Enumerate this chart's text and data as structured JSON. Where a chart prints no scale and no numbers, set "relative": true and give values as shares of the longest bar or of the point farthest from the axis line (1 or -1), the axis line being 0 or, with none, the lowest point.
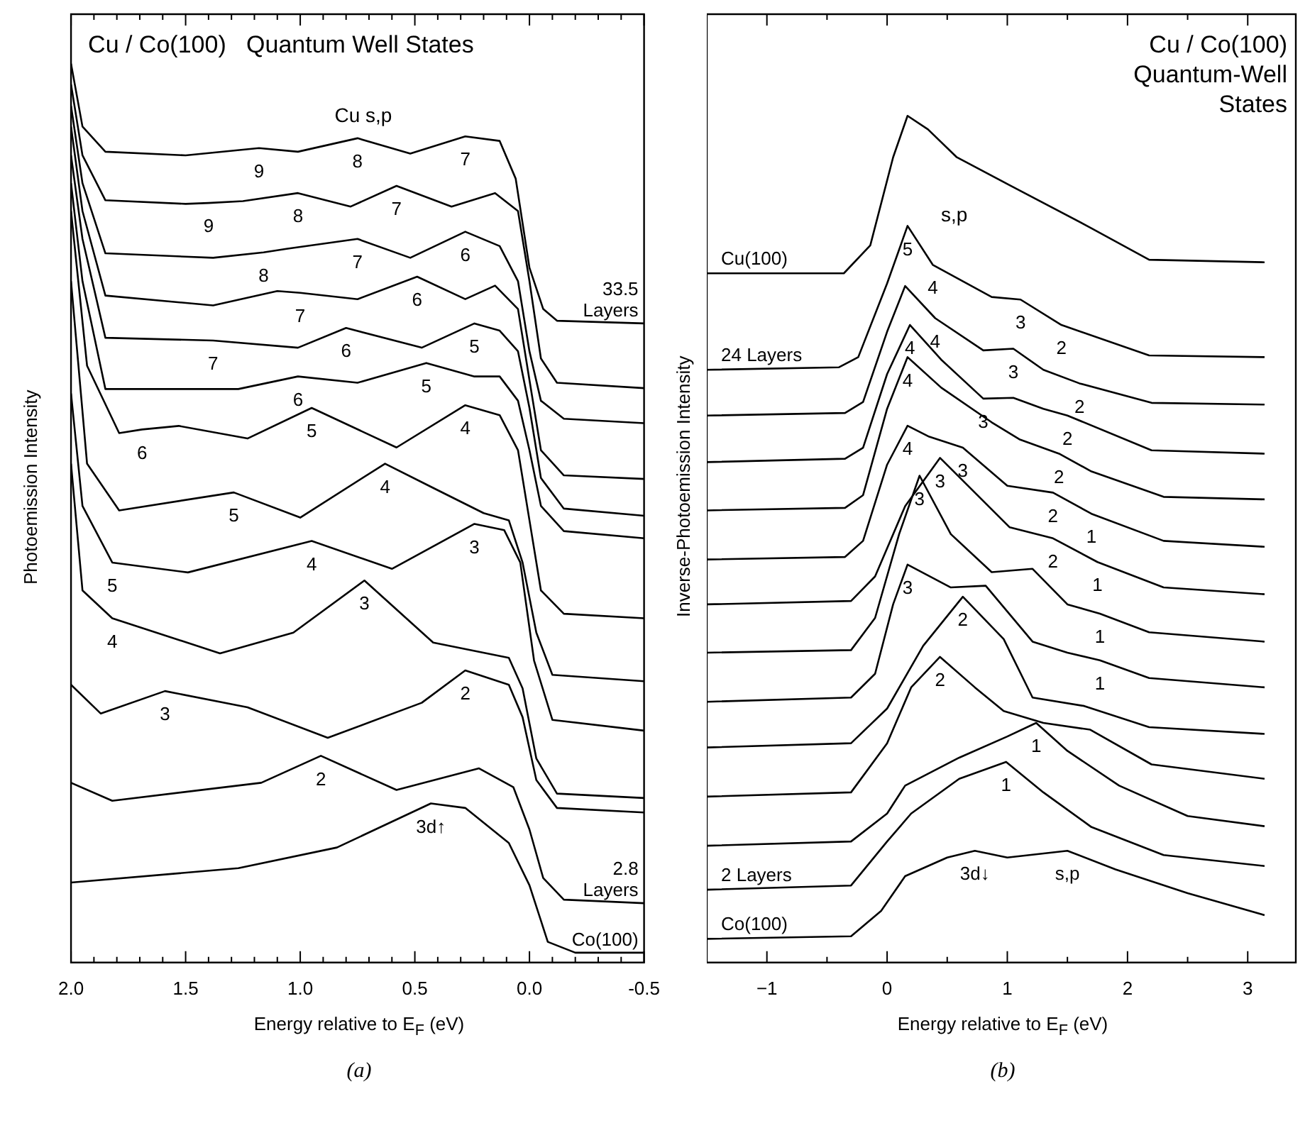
{
  "chart_data": [
    {
      "type": "line",
      "title": "Cu / Co(100)   Quantum Well States",
      "subtitle": "Cu s,p",
      "xlabel": "Energy relative to E$_{F}$ (eV)",
      "ylabel": "Photoemission Intensity",
      "relative": true,
      "tick_labels": "x",
      "xlim": [
        2.0,
        -0.5
      ],
      "xticks": [
        {
          "value": 2,
          "label": "2.0"
        },
        {
          "value": 1.9,
          "label": null
        },
        {
          "value": 1.8,
          "label": null
        },
        {
          "value": 1.7,
          "label": null
        },
        {
          "value": 1.6,
          "label": null
        },
        {
          "value": 1.5,
          "label": "1.5"
        },
        {
          "value": 1.4,
          "label": null
        },
        {
          "value": 1.3,
          "label": null
        },
        {
          "value": 1.2,
          "label": null
        },
        {
          "value": 1.1,
          "label": null
        },
        {
          "value": 1,
          "label": "1.0"
        },
        {
          "value": 0.9,
          "label": null
        },
        {
          "value": 0.8,
          "label": null
        },
        {
          "value": 0.7,
          "label": null
        },
        {
          "value": 0.6,
          "label": null
        },
        {
          "value": 0.5,
          "label": "0.5"
        },
        {
          "value": 0.4,
          "label": null
        },
        {
          "value": 0.3,
          "label": null
        },
        {
          "value": 0.2,
          "label": null
        },
        {
          "value": 0.1,
          "label": null
        },
        {
          "value": 0,
          "label": "0.0"
        },
        {
          "value": -0.1,
          "label": null
        },
        {
          "value": -0.2,
          "label": null
        },
        {
          "value": -0.3,
          "label": null
        },
        {
          "value": -0.4,
          "label": null
        },
        {
          "value": -0.5,
          "label": "-0.5"
        }
      ],
      "series": [
        {
          "color": "#000000",
          "x": [
            2.0,
            1.95,
            1.85,
            1.5,
            1.18,
            1.01,
            0.75,
            0.52,
            0.28,
            0.13,
            0.06,
            0,
            -0.06,
            -0.12,
            -0.5
          ],
          "values": [
            1.0,
            0.93,
            0.902,
            0.898,
            0.906,
            0.902,
            0.917,
            0.9,
            0.919,
            0.914,
            0.872,
            0.773,
            0.727,
            0.714,
            0.711
          ]
        },
        {
          "color": "#000000",
          "x": [
            2.0,
            1.95,
            1.85,
            1.5,
            1.4,
            1.25,
            1.01,
            0.78,
            0.58,
            0.34,
            0.15,
            0.05,
            0,
            -0.05,
            -0.12,
            -0.5
          ],
          "values": [
            0.977,
            0.898,
            0.848,
            0.844,
            0.845,
            0.847,
            0.856,
            0.841,
            0.864,
            0.841,
            0.856,
            0.836,
            0.758,
            0.672,
            0.645,
            0.639
          ]
        },
        {
          "color": "#000000",
          "x": [
            2.0,
            1.95,
            1.85,
            1.38,
            1.16,
            1.06,
            0.75,
            0.52,
            0.28,
            0.13,
            0.05,
            0,
            -0.05,
            -0.15,
            -0.5
          ],
          "values": [
            0.953,
            0.867,
            0.789,
            0.784,
            0.79,
            0.794,
            0.805,
            0.784,
            0.813,
            0.797,
            0.758,
            0.68,
            0.625,
            0.605,
            0.6
          ]
        },
        {
          "color": "#000000",
          "x": [
            2.0,
            1.95,
            1.85,
            1.38,
            1.1,
            1.0,
            0.75,
            0.49,
            0.28,
            0.15,
            0.05,
            0,
            -0.05,
            -0.15,
            -0.5
          ],
          "values": [
            0.93,
            0.836,
            0.742,
            0.731,
            0.747,
            0.745,
            0.738,
            0.763,
            0.738,
            0.753,
            0.727,
            0.648,
            0.57,
            0.542,
            0.538
          ]
        },
        {
          "color": "#000000",
          "x": [
            2.0,
            1.95,
            1.85,
            1.38,
            1.01,
            0.8,
            0.47,
            0.24,
            0.13,
            0.05,
            0,
            -0.05,
            -0.15,
            -0.5
          ],
          "values": [
            0.898,
            0.805,
            0.695,
            0.692,
            0.684,
            0.706,
            0.684,
            0.711,
            0.703,
            0.68,
            0.617,
            0.539,
            0.505,
            0.497
          ]
        },
        {
          "color": "#000000",
          "x": [
            2.0,
            1.95,
            1.85,
            1.27,
            1.01,
            0.75,
            0.45,
            0.24,
            0.13,
            0.05,
            0,
            -0.05,
            -0.15,
            -0.5
          ],
          "values": [
            0.867,
            0.758,
            0.638,
            0.638,
            0.652,
            0.645,
            0.667,
            0.652,
            0.652,
            0.625,
            0.57,
            0.508,
            0.48,
            0.472
          ]
        },
        {
          "color": "#000000",
          "x": [
            2.0,
            1.93,
            1.79,
            1.69,
            1.53,
            1.23,
            0.95,
            0.58,
            0.28,
            0.13,
            0.05,
            0,
            -0.05,
            -0.15,
            -0.5
          ],
          "values": [
            0.836,
            0.664,
            0.589,
            0.593,
            0.597,
            0.583,
            0.617,
            0.573,
            0.62,
            0.609,
            0.57,
            0.492,
            0.414,
            0.388,
            0.383
          ]
        },
        {
          "color": "#000000",
          "x": [
            2.0,
            1.93,
            1.79,
            1.29,
            1.0,
            0.63,
            0.42,
            0.2,
            0.09,
            0.03,
            -0.03,
            -0.1,
            -0.5
          ],
          "values": [
            0.758,
            0.555,
            0.503,
            0.523,
            0.495,
            0.555,
            0.528,
            0.5,
            0.492,
            0.445,
            0.367,
            0.32,
            0.313
          ]
        },
        {
          "color": "#000000",
          "x": [
            2.0,
            1.95,
            1.82,
            1.49,
            0.95,
            0.6,
            0.24,
            0.11,
            0.04,
            -0.02,
            -0.1,
            -0.5
          ],
          "values": [
            0.633,
            0.508,
            0.445,
            0.434,
            0.469,
            0.438,
            0.488,
            0.481,
            0.445,
            0.336,
            0.27,
            0.258
          ]
        },
        {
          "color": "#000000",
          "x": [
            2.0,
            1.95,
            1.82,
            1.35,
            1.03,
            0.72,
            0.42,
            0.09,
            0.03,
            -0.03,
            -0.12,
            -0.5
          ],
          "values": [
            0.555,
            0.414,
            0.383,
            0.344,
            0.367,
            0.425,
            0.356,
            0.339,
            0.305,
            0.227,
            0.188,
            0.183
          ]
        },
        {
          "color": "#000000",
          "x": [
            2.0,
            1.87,
            1.59,
            1.23,
            0.88,
            0.47,
            0.28,
            0.09,
            0.03,
            -0.03,
            -0.12,
            -0.5
          ],
          "values": [
            0.309,
            0.277,
            0.302,
            0.284,
            0.25,
            0.289,
            0.325,
            0.309,
            0.273,
            0.203,
            0.172,
            0.167
          ]
        },
        {
          "color": "#000000",
          "x": [
            2.0,
            1.82,
            1.17,
            0.91,
            0.58,
            0.22,
            0.07,
            0,
            -0.06,
            -0.15,
            -0.5
          ],
          "values": [
            0.2,
            0.18,
            0.2,
            0.23,
            0.192,
            0.216,
            0.195,
            0.148,
            0.094,
            0.07,
            0.066
          ]
        },
        {
          "color": "#000000",
          "x": [
            2.0,
            1.27,
            0.84,
            0.43,
            0.28,
            0.09,
            0,
            -0.08,
            -0.2,
            -0.5
          ],
          "values": [
            0.089,
            0.105,
            0.128,
            0.177,
            0.172,
            0.133,
            0.086,
            0.023,
            0.011,
            0.011
          ]
        }
      ],
      "annotations": [
        {
          "text": "9",
          "x": 1.18,
          "y": 0.906
        },
        {
          "text": "8",
          "x": 0.75,
          "y": 0.917
        },
        {
          "text": "7",
          "x": 0.28,
          "y": 0.919
        },
        {
          "text": "9",
          "x": 1.4,
          "y": 0.845
        },
        {
          "text": "8",
          "x": 1.01,
          "y": 0.856
        },
        {
          "text": "7",
          "x": 0.58,
          "y": 0.864
        },
        {
          "text": "8",
          "x": 1.16,
          "y": 0.79
        },
        {
          "text": "7",
          "x": 0.75,
          "y": 0.805
        },
        {
          "text": "6",
          "x": 0.28,
          "y": 0.813
        },
        {
          "text": "7",
          "x": 1.0,
          "y": 0.745
        },
        {
          "text": "6",
          "x": 0.49,
          "y": 0.763
        },
        {
          "text": "7",
          "x": 1.38,
          "y": 0.692
        },
        {
          "text": "6",
          "x": 0.8,
          "y": 0.706
        },
        {
          "text": "5",
          "x": 0.24,
          "y": 0.711
        },
        {
          "text": "6",
          "x": 1.01,
          "y": 0.652
        },
        {
          "text": "5",
          "x": 0.45,
          "y": 0.667
        },
        {
          "text": "6",
          "x": 1.69,
          "y": 0.593
        },
        {
          "text": "5",
          "x": 0.95,
          "y": 0.617
        },
        {
          "text": "4",
          "x": 0.28,
          "y": 0.62
        },
        {
          "text": "5",
          "x": 1.29,
          "y": 0.523
        },
        {
          "text": "4",
          "x": 0.63,
          "y": 0.555
        },
        {
          "text": "5",
          "x": 1.82,
          "y": 0.445
        },
        {
          "text": "4",
          "x": 0.95,
          "y": 0.469
        },
        {
          "text": "3",
          "x": 0.24,
          "y": 0.488
        },
        {
          "text": "4",
          "x": 1.82,
          "y": 0.383
        },
        {
          "text": "3",
          "x": 0.72,
          "y": 0.425
        },
        {
          "text": "3",
          "x": 1.59,
          "y": 0.302
        },
        {
          "text": "2",
          "x": 0.28,
          "y": 0.325
        },
        {
          "text": "2",
          "x": 0.91,
          "y": 0.23
        },
        {
          "text": "3d↑",
          "x": 0.43,
          "y": 0.177
        },
        {
          "text": "33.5\nLayers",
          "x": -0.5,
          "y": 0.711
        },
        {
          "text": "2.8\nLayers",
          "x": -0.5,
          "y": 0.066
        },
        {
          "text": "Co(100)",
          "x": -0.5,
          "y": 0.011
        },
        "(a)"
      ]
    },
    {
      "type": "line",
      "title": "Cu / Co(100)\nQuantum-Well\nStates",
      "subtitle": "s,p",
      "xlabel": "Energy relative to E$_{F}$ (eV)",
      "ylabel": "Inverse-Photoemission Intensity",
      "relative": true,
      "tick_labels": "x",
      "xlim": [
        -1.5,
        3.4
      ],
      "xticks": [
        {
          "value": -1,
          "label": "−1"
        },
        {
          "value": -0.5,
          "label": null
        },
        0,
        {
          "value": 0.5,
          "label": null
        },
        1,
        {
          "value": 1.5,
          "label": null
        },
        2,
        {
          "value": 2.5,
          "label": null
        },
        3
      ],
      "series": [
        {
          "color": "#000000",
          "x": [
            -1.5,
            -0.36,
            -0.14,
            0.05,
            0.17,
            0.34,
            0.58,
            1.02,
            1.69,
            2.18,
            3.14
          ],
          "values": [
            0.814,
            0.814,
            0.847,
            0.951,
            1.0,
            0.984,
            0.951,
            0.918,
            0.868,
            0.83,
            0.827
          ]
        },
        {
          "color": "#000000",
          "x": [
            -1.5,
            -0.4,
            -0.24,
            0,
            0.17,
            0.38,
            0.87,
            1.11,
            1.45,
            2.18,
            3.14
          ],
          "values": [
            0.7,
            0.703,
            0.715,
            0.802,
            0.87,
            0.824,
            0.786,
            0.783,
            0.753,
            0.717,
            0.715
          ]
        },
        {
          "color": "#000000",
          "x": [
            -1.5,
            -0.35,
            -0.2,
            0,
            0.15,
            0.4,
            0.8,
            1.05,
            1.3,
            1.6,
            2.2,
            3.14
          ],
          "values": [
            0.646,
            0.649,
            0.662,
            0.745,
            0.799,
            0.761,
            0.723,
            0.725,
            0.7,
            0.684,
            0.661,
            0.659
          ]
        },
        {
          "color": "#000000",
          "x": [
            -1.5,
            -0.35,
            -0.2,
            0,
            0.19,
            0.45,
            0.8,
            1.05,
            1.3,
            1.5,
            2.2,
            3.14
          ],
          "values": [
            0.591,
            0.595,
            0.608,
            0.695,
            0.753,
            0.712,
            0.666,
            0.667,
            0.654,
            0.646,
            0.605,
            0.601
          ]
        },
        {
          "color": "#000000",
          "x": [
            -1.5,
            -0.35,
            -0.2,
            0,
            0.17,
            0.45,
            0.87,
            1.1,
            1.43,
            1.7,
            2.3,
            3.14
          ],
          "values": [
            0.534,
            0.537,
            0.552,
            0.654,
            0.715,
            0.679,
            0.638,
            0.618,
            0.601,
            0.58,
            0.55,
            0.547
          ]
        },
        {
          "color": "#000000",
          "x": [
            -1.5,
            -0.35,
            -0.2,
            0,
            0.17,
            0.35,
            0.63,
            1.0,
            1.38,
            1.7,
            2.3,
            3.14
          ],
          "values": [
            0.476,
            0.479,
            0.498,
            0.588,
            0.634,
            0.621,
            0.608,
            0.563,
            0.555,
            0.53,
            0.498,
            0.491
          ]
        },
        {
          "color": "#000000",
          "x": [
            -1.5,
            -0.3,
            -0.1,
            0.15,
            0.44,
            0.73,
            1.02,
            1.38,
            1.75,
            2.3,
            3.14
          ],
          "values": [
            0.423,
            0.427,
            0.456,
            0.539,
            0.596,
            0.555,
            0.514,
            0.501,
            0.473,
            0.443,
            0.435
          ]
        },
        {
          "color": "#000000",
          "x": [
            -1.5,
            -0.3,
            -0.1,
            0.1,
            0.27,
            0.53,
            0.87,
            1.21,
            1.5,
            1.77,
            2.18,
            3.14
          ],
          "values": [
            0.366,
            0.369,
            0.407,
            0.506,
            0.575,
            0.506,
            0.461,
            0.465,
            0.423,
            0.412,
            0.39,
            0.379
          ]
        },
        {
          "color": "#000000",
          "x": [
            -1.5,
            -0.3,
            -0.1,
            0.05,
            0.17,
            0.53,
            0.82,
            1.21,
            1.5,
            1.77,
            2.18,
            3.14
          ],
          "values": [
            0.308,
            0.313,
            0.341,
            0.423,
            0.47,
            0.443,
            0.445,
            0.379,
            0.366,
            0.357,
            0.336,
            0.325
          ]
        },
        {
          "color": "#000000",
          "x": [
            -1.5,
            -0.3,
            0,
            0.3,
            0.63,
            0.97,
            1.21,
            1.64,
            2.18,
            3.14
          ],
          "values": [
            0.254,
            0.259,
            0.3,
            0.374,
            0.432,
            0.382,
            0.313,
            0.303,
            0.278,
            0.27
          ]
        },
        {
          "color": "#000000",
          "x": [
            -1.5,
            -0.3,
            0,
            0.2,
            0.44,
            0.73,
            0.97,
            1.3,
            1.69,
            2.2,
            3.14
          ],
          "values": [
            0.196,
            0.201,
            0.259,
            0.325,
            0.361,
            0.325,
            0.297,
            0.283,
            0.275,
            0.234,
            0.217
          ]
        },
        {
          "color": "#000000",
          "x": [
            -1.5,
            -0.3,
            0,
            0.15,
            0.6,
            1.0,
            1.24,
            1.5,
            1.93,
            2.5,
            3.14
          ],
          "values": [
            0.138,
            0.143,
            0.176,
            0.209,
            0.242,
            0.267,
            0.283,
            0.25,
            0.209,
            0.173,
            0.161
          ]
        },
        {
          "color": "#000000",
          "x": [
            -1.5,
            -0.3,
            0,
            0.2,
            0.6,
            0.99,
            1.3,
            1.7,
            2.3,
            3.14
          ],
          "values": [
            0.086,
            0.091,
            0.143,
            0.176,
            0.217,
            0.237,
            0.201,
            0.16,
            0.127,
            0.114
          ]
        },
        {
          "color": "#000000",
          "x": [
            -1.5,
            -0.3,
            -0.05,
            0.15,
            0.5,
            0.73,
            1.0,
            1.5,
            1.9,
            2.5,
            3.14
          ],
          "values": [
            0.028,
            0.031,
            0.061,
            0.102,
            0.124,
            0.132,
            0.124,
            0.132,
            0.11,
            0.082,
            0.056
          ]
        }
      ],
      "annotations": [
        {
          "text": "Cu(100)",
          "x": -1.5,
          "y": 0.814
        },
        {
          "text": "5",
          "x": 0.17,
          "y": 0.87
        },
        {
          "text": "4",
          "x": 0.38,
          "y": 0.824
        },
        {
          "text": "4",
          "x": 0.4,
          "y": 0.761
        },
        {
          "text": "3",
          "x": 1.11,
          "y": 0.783
        },
        {
          "text": "24 Layers",
          "x": -1.5,
          "y": 0.7
        },
        {
          "text": "4",
          "x": 0.19,
          "y": 0.753
        },
        {
          "text": "2",
          "x": 1.45,
          "y": 0.753
        },
        {
          "text": "3",
          "x": 1.05,
          "y": 0.725
        },
        {
          "text": "2",
          "x": 1.6,
          "y": 0.684
        },
        {
          "text": "4",
          "x": 0.17,
          "y": 0.715
        },
        {
          "text": "3",
          "x": 0.8,
          "y": 0.666
        },
        {
          "text": "2",
          "x": 1.5,
          "y": 0.646
        },
        {
          "text": "4",
          "x": 0.17,
          "y": 0.634
        },
        {
          "text": "3",
          "x": 0.63,
          "y": 0.608
        },
        {
          "text": "2",
          "x": 1.43,
          "y": 0.601
        },
        {
          "text": "3",
          "x": 0.44,
          "y": 0.596
        },
        {
          "text": "3",
          "x": 0.27,
          "y": 0.575
        },
        {
          "text": "2",
          "x": 1.38,
          "y": 0.555
        },
        {
          "text": "1",
          "x": 1.7,
          "y": 0.53
        },
        {
          "text": "2",
          "x": 1.38,
          "y": 0.501
        },
        {
          "text": "3",
          "x": 0.17,
          "y": 0.47
        },
        {
          "text": "1",
          "x": 1.75,
          "y": 0.473
        },
        {
          "text": "2",
          "x": 0.63,
          "y": 0.432
        },
        {
          "text": "1",
          "x": 1.77,
          "y": 0.412
        },
        {
          "text": "2",
          "x": 0.44,
          "y": 0.361
        },
        {
          "text": "1",
          "x": 1.77,
          "y": 0.357
        },
        {
          "text": "1",
          "x": 1.24,
          "y": 0.283
        },
        {
          "text": "1",
          "x": 0.99,
          "y": 0.237
        },
        {
          "text": "3d↓",
          "x": 0.73,
          "y": 0.132
        },
        {
          "text": "s,p",
          "x": 1.5,
          "y": 0.132
        },
        {
          "text": "2 Layers",
          "x": -1.5,
          "y": 0.086
        },
        {
          "text": "Co(100)",
          "x": -1.5,
          "y": 0.028
        },
        "(b)"
      ]
    }
  ]
}
